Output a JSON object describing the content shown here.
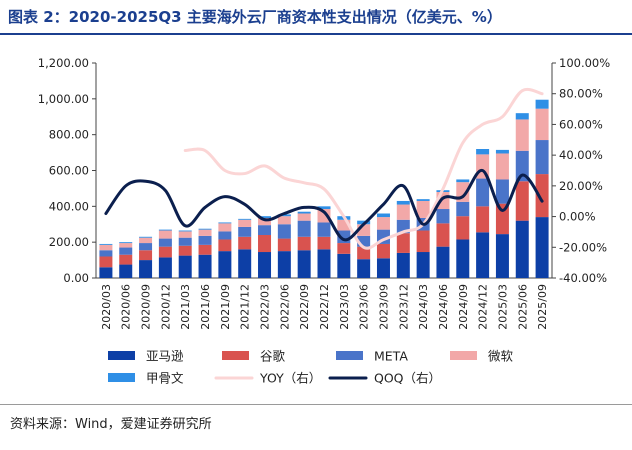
{
  "header": {
    "title": "图表 2：2020-2025Q3 主要海外云厂商资本性支出情况（亿美元、%）"
  },
  "footer": {
    "source": "资料来源：Wind，爱建证券研究所"
  },
  "chart_data": {
    "type": "bar",
    "stacked": true,
    "categories": [
      "2020/03",
      "2020/06",
      "2020/09",
      "2020/12",
      "2021/03",
      "2021/06",
      "2021/09",
      "2021/12",
      "2022/03",
      "2022/06",
      "2022/09",
      "2022/12",
      "2023/03",
      "2023/06",
      "2023/09",
      "2023/12",
      "2024/03",
      "2024/06",
      "2024/09",
      "2024/12",
      "2025/03",
      "2025/06",
      "2025/09"
    ],
    "ylim": [
      0,
      1200
    ],
    "y_ticks": [
      "0.00",
      "200.00",
      "400.00",
      "600.00",
      "800.00",
      "1,000.00",
      "1,200.00"
    ],
    "y2lim": [
      -40,
      100
    ],
    "y2_ticks": [
      "-40.00%",
      "-20.00%",
      "0.00%",
      "20.00%",
      "40.00%",
      "60.00%",
      "80.00%",
      "100.00%"
    ],
    "grid": false,
    "legend_position": "bottom",
    "series": [
      {
        "name": "亚马逊",
        "kind": "bar",
        "color": "#0d3fa6",
        "values": [
          60,
          75,
          100,
          115,
          125,
          130,
          150,
          160,
          145,
          150,
          155,
          160,
          135,
          105,
          110,
          140,
          145,
          175,
          215,
          255,
          245,
          320,
          340
        ]
      },
      {
        "name": "谷歌",
        "kind": "bar",
        "color": "#d9534f",
        "values": [
          60,
          55,
          55,
          60,
          55,
          55,
          65,
          70,
          95,
          70,
          75,
          70,
          60,
          70,
          80,
          110,
          120,
          130,
          130,
          145,
          170,
          220,
          240
        ]
      },
      {
        "name": "META",
        "kind": "bar",
        "color": "#4a74c9",
        "values": [
          35,
          40,
          40,
          45,
          45,
          50,
          45,
          55,
          55,
          80,
          90,
          80,
          70,
          60,
          80,
          75,
          70,
          80,
          80,
          155,
          135,
          170,
          190
        ]
      },
      {
        "name": "微软",
        "kind": "bar",
        "color": "#f2a8a8",
        "values": [
          30,
          25,
          30,
          45,
          35,
          35,
          45,
          40,
          40,
          45,
          40,
          75,
          60,
          65,
          70,
          85,
          95,
          95,
          110,
          135,
          145,
          175,
          175
        ]
      },
      {
        "name": "甲骨文",
        "kind": "bar",
        "color": "#2f8fe6",
        "values": [
          5,
          5,
          5,
          5,
          5,
          5,
          5,
          5,
          10,
          10,
          10,
          15,
          20,
          20,
          20,
          20,
          10,
          10,
          15,
          30,
          20,
          35,
          50
        ]
      },
      {
        "name": "YOY（右）",
        "kind": "line",
        "axis": "right",
        "color": "#fbd5d5",
        "values": [
          null,
          null,
          null,
          null,
          43,
          43,
          30,
          28,
          33,
          25,
          22,
          18,
          0,
          -20,
          -15,
          -10,
          -5,
          18,
          48,
          60,
          65,
          82,
          80
        ]
      },
      {
        "name": "QOQ（右）",
        "kind": "line",
        "axis": "right",
        "color": "#0b1f4e",
        "values": [
          2,
          20,
          23,
          17,
          -6,
          6,
          13,
          8,
          -2,
          2,
          6,
          3,
          -15,
          -5,
          8,
          20,
          -5,
          12,
          13,
          30,
          4,
          27,
          10
        ]
      }
    ]
  }
}
